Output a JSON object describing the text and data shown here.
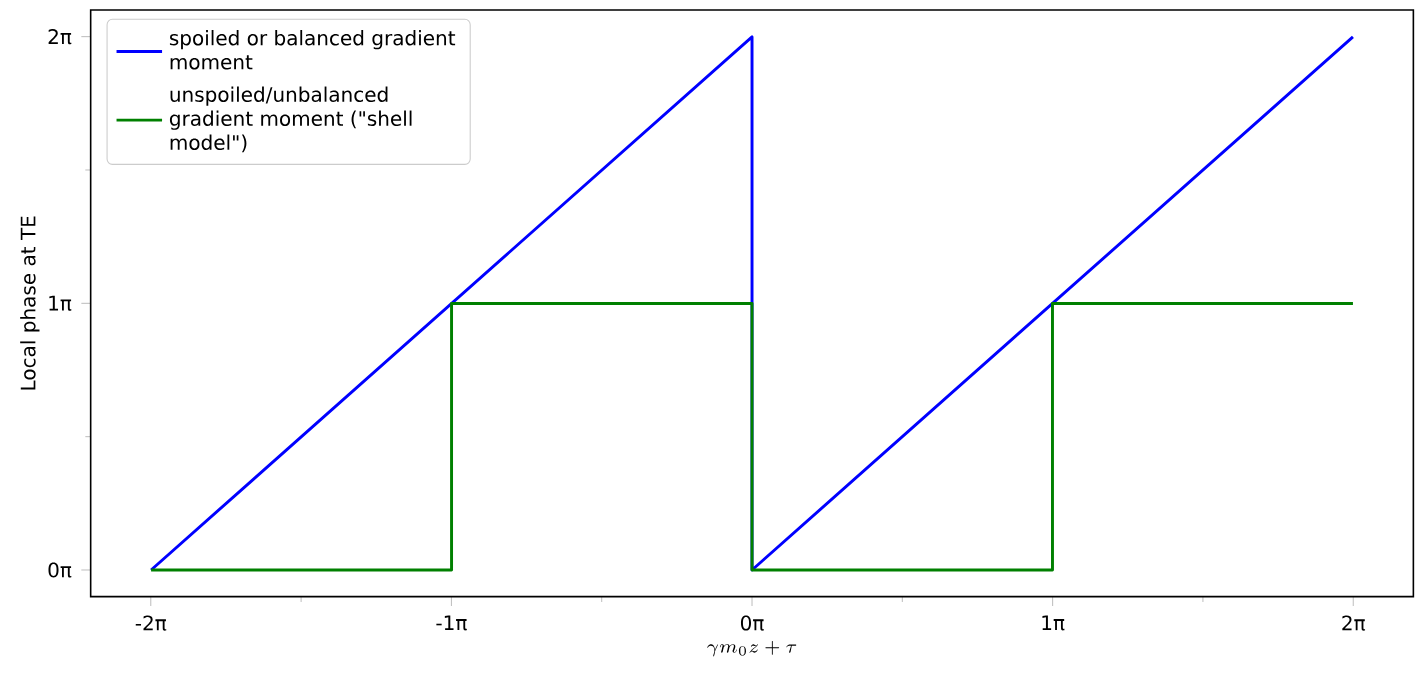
{
  "chart_data": {
    "type": "line",
    "xlabel": "\\gamma m_0 z + \\tau",
    "ylabel": "Local phase at TE",
    "xlim": [
      -6.9115,
      6.9115
    ],
    "ylim": [
      -0.3142,
      6.5973
    ],
    "xticks": [
      {
        "value": -6.2832,
        "label": "-2π"
      },
      {
        "value": -4.7124,
        "label": null
      },
      {
        "value": -3.1416,
        "label": "-1π"
      },
      {
        "value": -1.5708,
        "label": null
      },
      {
        "value": 0,
        "label": "0π"
      },
      {
        "value": 1.5708,
        "label": null
      },
      {
        "value": 3.1416,
        "label": "1π"
      },
      {
        "value": 4.7124,
        "label": null
      },
      {
        "value": 6.2832,
        "label": "2π"
      }
    ],
    "yticks": [
      {
        "value": 0,
        "label": "0π"
      },
      {
        "value": 1.5708,
        "label": null
      },
      {
        "value": 3.1416,
        "label": "1π"
      },
      {
        "value": 4.7124,
        "label": null
      },
      {
        "value": 6.2832,
        "label": "2π"
      }
    ],
    "legend": "top left",
    "series": [
      {
        "name": "spoiled or balanced gradient moment",
        "color": "#0000ff",
        "x": [
          -6.28,
          0,
          0,
          6.28
        ],
        "values": [
          0,
          6.28,
          0,
          6.28
        ]
      },
      {
        "name": "unspoiled/unbalanced gradient moment (\"shell model\")",
        "color": "#008000",
        "x": [
          -6.28,
          -3.14,
          -3.14,
          0,
          0,
          3.14,
          3.14,
          6.28
        ],
        "values": [
          0,
          0,
          3.14,
          3.14,
          0,
          0,
          3.14,
          3.14
        ]
      }
    ]
  }
}
